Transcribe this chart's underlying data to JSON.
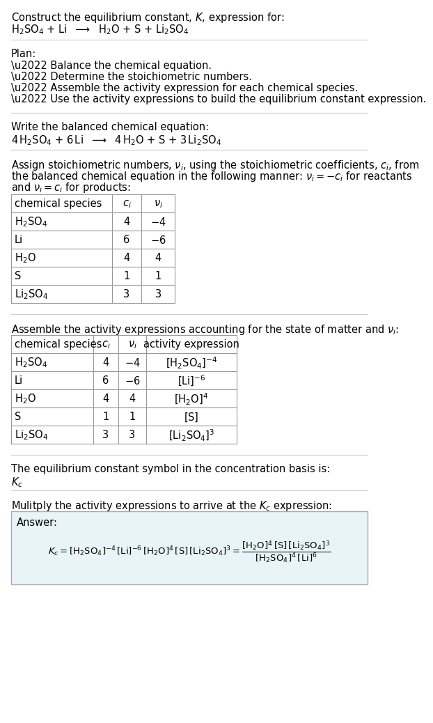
{
  "bg_color": "#ffffff",
  "fs": 10.5,
  "fs_small": 9.5,
  "line_color": "#cccccc",
  "table_line_color": "#999999",
  "answer_box_color": "#e8f4f8",
  "sections": {
    "s1_line1": "Construct the equilibrium constant, $K$, expression for:",
    "s1_line2": "$\\mathrm{H_2SO_4}$ + Li  $\\longrightarrow$  $\\mathrm{H_2O}$ + S + $\\mathrm{Li_2SO_4}$",
    "s2_header": "Plan:",
    "s2_bullets": [
      "\\u2022 Balance the chemical equation.",
      "\\u2022 Determine the stoichiometric numbers.",
      "\\u2022 Assemble the activity expression for each chemical species.",
      "\\u2022 Use the activity expressions to build the equilibrium constant expression."
    ],
    "s3_header": "Write the balanced chemical equation:",
    "s3_eq": "$4\\,\\mathrm{H_2SO_4}$ + $6\\,\\mathrm{Li}$  $\\longrightarrow$  $4\\,\\mathrm{H_2O}$ + S + $3\\,\\mathrm{Li_2SO_4}$",
    "s4_header_lines": [
      "Assign stoichiometric numbers, $\\nu_i$, using the stoichiometric coefficients, $c_i$, from",
      "the balanced chemical equation in the following manner: $\\nu_i = -c_i$ for reactants",
      "and $\\nu_i = c_i$ for products:"
    ],
    "table1_cols": [
      "chemical species",
      "$c_i$",
      "$\\nu_i$"
    ],
    "table1_rows": [
      [
        "$\\mathrm{H_2SO_4}$",
        "4",
        "$-4$"
      ],
      [
        "Li",
        "6",
        "$-6$"
      ],
      [
        "$\\mathrm{H_2O}$",
        "4",
        "4"
      ],
      [
        "S",
        "1",
        "1"
      ],
      [
        "$\\mathrm{Li_2SO_4}$",
        "3",
        "3"
      ]
    ],
    "s5_header": "Assemble the activity expressions accounting for the state of matter and $\\nu_i$:",
    "table2_cols": [
      "chemical species",
      "$c_i$",
      "$\\nu_i$",
      "activity expression"
    ],
    "table2_rows": [
      [
        "$\\mathrm{H_2SO_4}$",
        "4",
        "$-4$",
        "$[\\mathrm{H_2SO_4}]^{-4}$"
      ],
      [
        "Li",
        "6",
        "$-6$",
        "$[\\mathrm{Li}]^{-6}$"
      ],
      [
        "$\\mathrm{H_2O}$",
        "4",
        "4",
        "$[\\mathrm{H_2O}]^{4}$"
      ],
      [
        "S",
        "1",
        "1",
        "$[\\mathrm{S}]$"
      ],
      [
        "$\\mathrm{Li_2SO_4}$",
        "3",
        "3",
        "$[\\mathrm{Li_2SO_4}]^{3}$"
      ]
    ],
    "s6_line1": "The equilibrium constant symbol in the concentration basis is:",
    "s6_line2": "$K_c$",
    "s7_header": "Mulitply the activity expressions to arrive at the $K_c$ expression:",
    "answer_label": "Answer:",
    "kc_expr": "$K_c = [\\mathrm{H_2SO_4}]^{-4}\\,[\\mathrm{Li}]^{-6}\\,[\\mathrm{H_2O}]^{4}\\,[\\mathrm{S}]\\,[\\mathrm{Li_2SO_4}]^{3} = \\dfrac{[\\mathrm{H_2O}]^{4}\\,[\\mathrm{S}]\\,[\\mathrm{Li_2SO_4}]^{3}}{[\\mathrm{H_2SO_4}]^{4}\\,[\\mathrm{Li}]^{6}}$"
  }
}
